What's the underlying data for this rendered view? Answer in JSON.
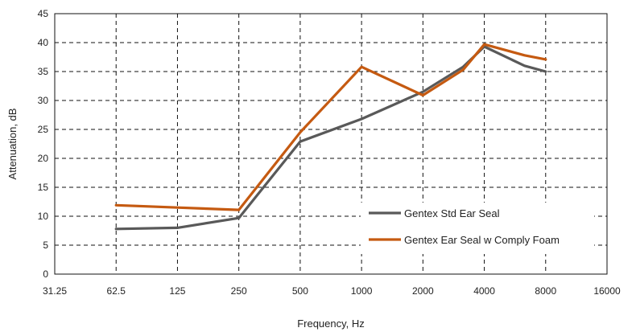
{
  "chart_data": {
    "type": "line",
    "title": "",
    "xlabel": "Frequency, Hz",
    "ylabel": "Attenuation, dB",
    "x_ticks": [
      "31.25",
      "62.5",
      "125",
      "250",
      "500",
      "1000",
      "2000",
      "4000",
      "8000",
      "16000"
    ],
    "x_scale": "log2",
    "xlim": [
      31.25,
      16000
    ],
    "ylim": [
      0,
      45
    ],
    "y_ticks": [
      0,
      5,
      10,
      15,
      20,
      25,
      30,
      35,
      40,
      45
    ],
    "grid": true,
    "legend_position": "lower-right",
    "series": [
      {
        "name": "Gentex Std Ear Seal",
        "color": "#595959",
        "points": [
          {
            "x": 62.5,
            "y": 7.8
          },
          {
            "x": 125,
            "y": 8.0
          },
          {
            "x": 250,
            "y": 9.7
          },
          {
            "x": 500,
            "y": 22.9
          },
          {
            "x": 1000,
            "y": 26.8
          },
          {
            "x": 2000,
            "y": 31.5
          },
          {
            "x": 3150,
            "y": 35.8
          },
          {
            "x": 4000,
            "y": 39.3
          },
          {
            "x": 6300,
            "y": 36.0
          },
          {
            "x": 8000,
            "y": 35.0
          }
        ]
      },
      {
        "name": "Gentex Ear Seal w Comply Foam",
        "color": "#C55A11",
        "points": [
          {
            "x": 62.5,
            "y": 11.9
          },
          {
            "x": 125,
            "y": 11.5
          },
          {
            "x": 250,
            "y": 11.1
          },
          {
            "x": 500,
            "y": 24.5
          },
          {
            "x": 1000,
            "y": 35.8
          },
          {
            "x": 2000,
            "y": 30.9
          },
          {
            "x": 3150,
            "y": 35.3
          },
          {
            "x": 4000,
            "y": 39.7
          },
          {
            "x": 6300,
            "y": 37.8
          },
          {
            "x": 8000,
            "y": 37.1
          }
        ]
      }
    ]
  }
}
